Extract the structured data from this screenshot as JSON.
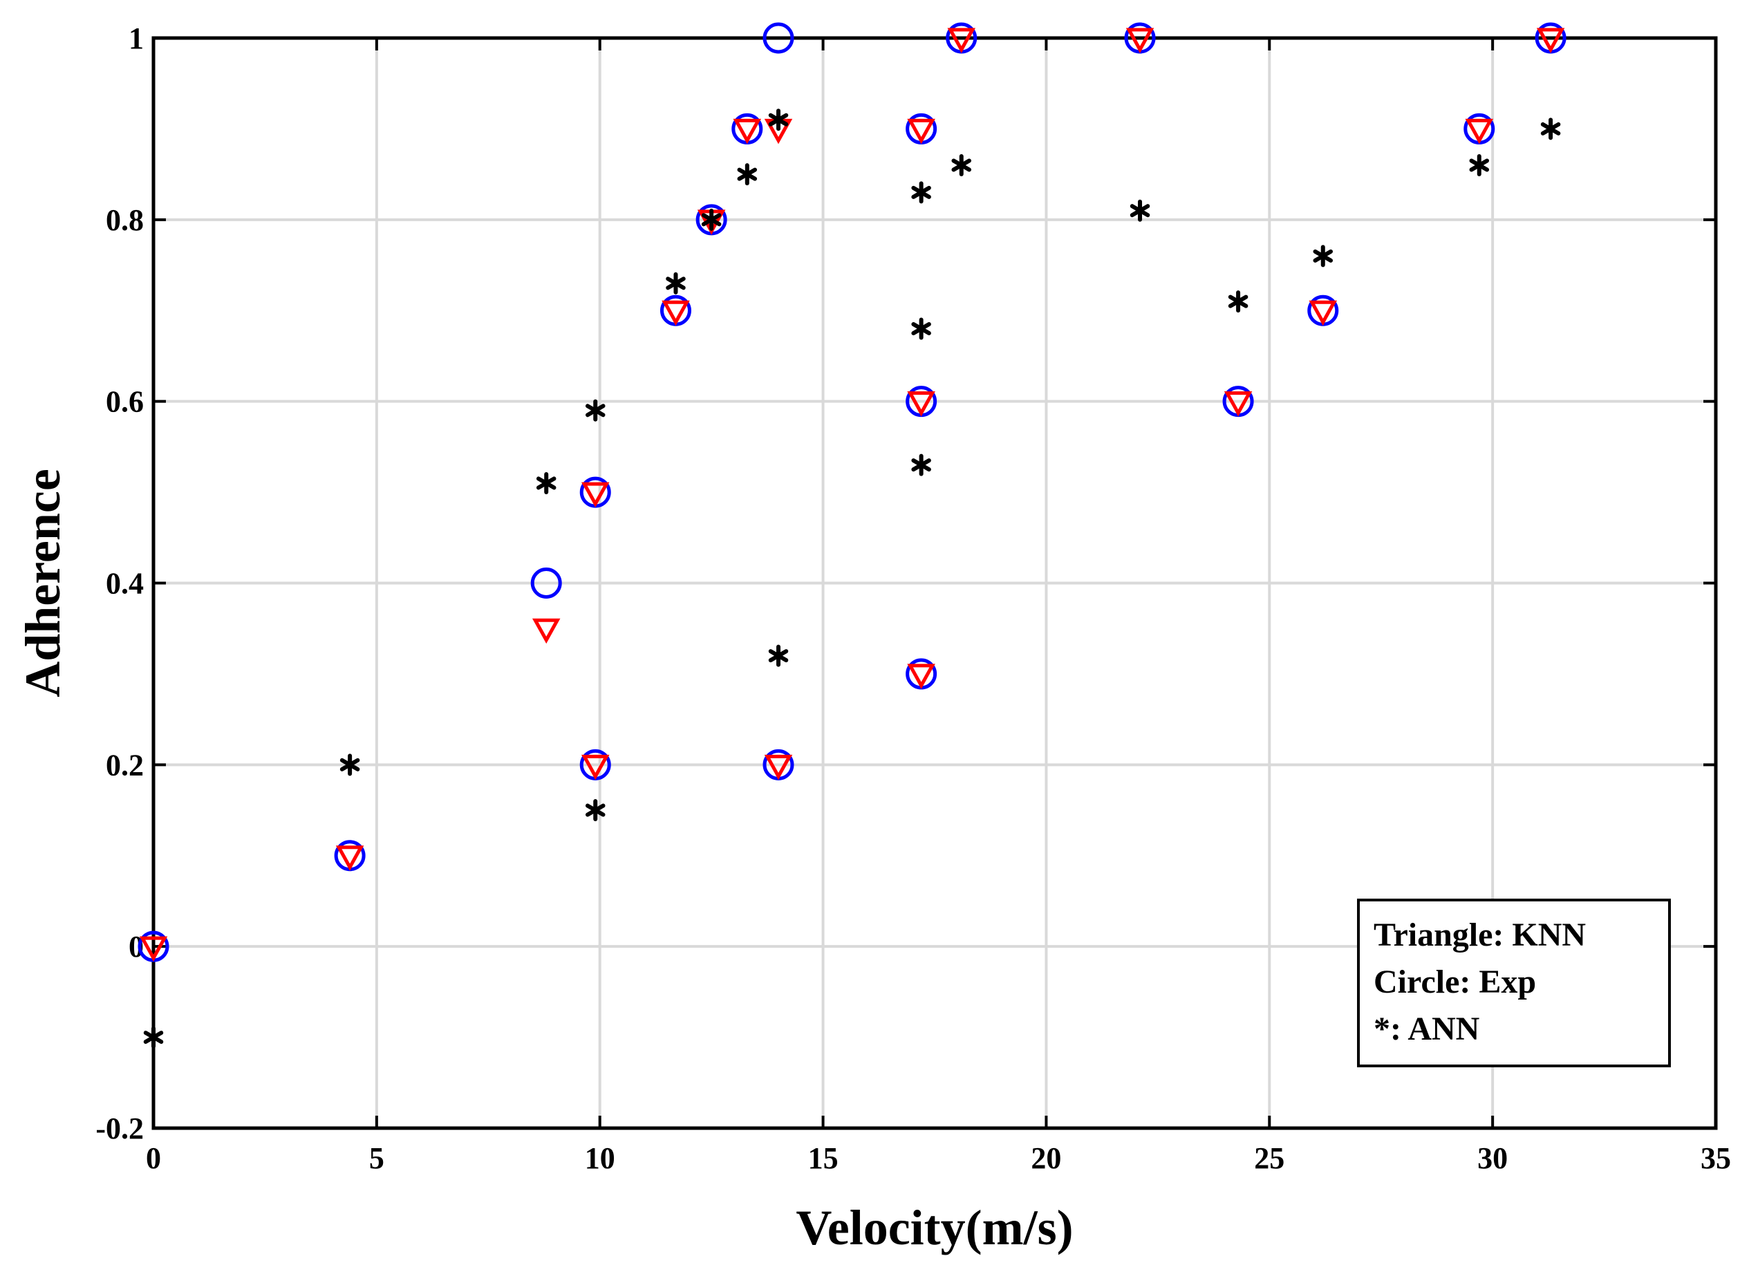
{
  "chart_data": {
    "type": "scatter",
    "title": "",
    "xlabel": "Velocity(m/s)",
    "ylabel": "Adherence",
    "xlim": [
      0,
      35
    ],
    "ylim": [
      -0.2,
      1
    ],
    "xticks": [
      0,
      5,
      10,
      15,
      20,
      25,
      30,
      35
    ],
    "yticks": [
      -0.2,
      0,
      0.2,
      0.4,
      0.6,
      0.8,
      1
    ],
    "xtick_labels": [
      "0",
      "5",
      "10",
      "15",
      "20",
      "25",
      "30",
      "35"
    ],
    "ytick_labels": [
      "-0.2",
      "0",
      "0.2",
      "0.4",
      "0.6",
      "0.8",
      "1"
    ],
    "grid": true,
    "legend_position": "bottom-right",
    "legend": [
      "Triangle: KNN",
      "Circle: Exp",
      "*: ANN"
    ],
    "colors": {
      "exp": "#0000ff",
      "knn": "#ff0000",
      "ann": "#000000"
    },
    "series": [
      {
        "name": "Exp",
        "marker": "circle",
        "x": [
          0,
          4.4,
          8.8,
          9.9,
          9.9,
          11.7,
          12.5,
          13.3,
          14,
          14,
          17.2,
          17.2,
          17.2,
          18.1,
          22.1,
          24.3,
          26.2,
          29.7,
          31.3
        ],
        "y": [
          0,
          0.1,
          0.4,
          0.5,
          0.2,
          0.7,
          0.8,
          0.9,
          1.0,
          0.2,
          0.9,
          0.6,
          0.3,
          1.0,
          1.0,
          0.6,
          0.7,
          0.9,
          1.0
        ]
      },
      {
        "name": "KNN",
        "marker": "triangle-down",
        "x": [
          0,
          4.4,
          8.8,
          9.9,
          9.9,
          11.7,
          12.5,
          13.3,
          14,
          14,
          17.2,
          17.2,
          17.2,
          18.1,
          22.1,
          24.3,
          26.2,
          29.7,
          31.3
        ],
        "y": [
          0,
          0.1,
          0.35,
          0.5,
          0.2,
          0.7,
          0.8,
          0.9,
          0.9,
          0.2,
          0.9,
          0.6,
          0.3,
          1.0,
          1.0,
          0.6,
          0.7,
          0.9,
          1.0
        ]
      },
      {
        "name": "ANN",
        "marker": "asterisk",
        "x": [
          0,
          4.4,
          8.8,
          9.9,
          9.9,
          11.7,
          12.5,
          13.3,
          14,
          14,
          17.2,
          17.2,
          17.2,
          18.1,
          22.1,
          24.3,
          26.2,
          29.7,
          31.3
        ],
        "y": [
          -0.1,
          0.2,
          0.51,
          0.59,
          0.15,
          0.73,
          0.8,
          0.85,
          0.91,
          0.32,
          0.83,
          0.68,
          0.53,
          0.86,
          0.81,
          0.71,
          0.76,
          0.86,
          0.9
        ]
      }
    ]
  }
}
